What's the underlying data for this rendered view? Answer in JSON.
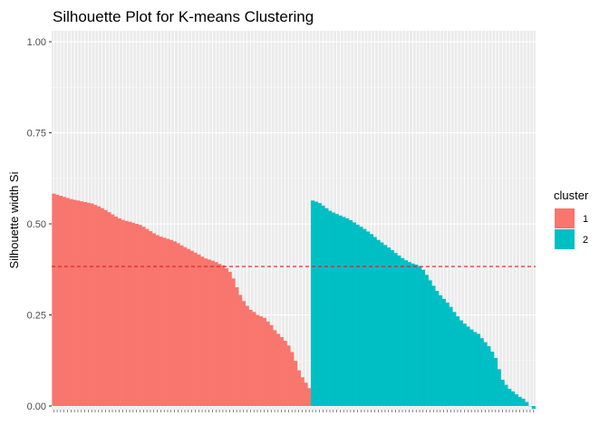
{
  "chart_data": {
    "type": "bar",
    "title": "Silhouette Plot for K-means Clustering",
    "xlabel": "",
    "ylabel": "Silhouette width Si",
    "ylim": [
      -0.01,
      1.03
    ],
    "yticks": [
      0.0,
      0.25,
      0.5,
      0.75,
      1.0
    ],
    "ytick_labels": [
      "0.00",
      "0.25",
      "0.50",
      "0.75",
      "1.00"
    ],
    "average_silhouette": 0.383,
    "average_line_color": "#dd1c1c",
    "grid": true,
    "legend": {
      "title": "cluster",
      "position": "right"
    },
    "series": [
      {
        "name": "1",
        "color": "#f8766d",
        "values": [
          0.583,
          0.58,
          0.577,
          0.574,
          0.571,
          0.568,
          0.566,
          0.564,
          0.562,
          0.56,
          0.558,
          0.556,
          0.552,
          0.548,
          0.543,
          0.538,
          0.532,
          0.526,
          0.52,
          0.515,
          0.511,
          0.508,
          0.506,
          0.503,
          0.5,
          0.497,
          0.492,
          0.486,
          0.48,
          0.474,
          0.469,
          0.465,
          0.462,
          0.459,
          0.456,
          0.452,
          0.447,
          0.441,
          0.436,
          0.431,
          0.426,
          0.421,
          0.416,
          0.41,
          0.405,
          0.402,
          0.399,
          0.395,
          0.39,
          0.386,
          0.378,
          0.368,
          0.35,
          0.326,
          0.305,
          0.288,
          0.275,
          0.264,
          0.258,
          0.25,
          0.246,
          0.242,
          0.232,
          0.222,
          0.208,
          0.198,
          0.189,
          0.179,
          0.166,
          0.148,
          0.124,
          0.098,
          0.079,
          0.064,
          0.049
        ]
      },
      {
        "name": "2",
        "color": "#00bfc4",
        "values": [
          0.564,
          0.561,
          0.557,
          0.55,
          0.543,
          0.536,
          0.531,
          0.527,
          0.523,
          0.519,
          0.515,
          0.51,
          0.504,
          0.498,
          0.492,
          0.486,
          0.479,
          0.472,
          0.464,
          0.456,
          0.449,
          0.442,
          0.435,
          0.428,
          0.42,
          0.413,
          0.406,
          0.4,
          0.395,
          0.391,
          0.388,
          0.384,
          0.374,
          0.36,
          0.345,
          0.33,
          0.316,
          0.304,
          0.294,
          0.284,
          0.272,
          0.258,
          0.246,
          0.235,
          0.226,
          0.218,
          0.21,
          0.203,
          0.198,
          0.186,
          0.175,
          0.164,
          0.149,
          0.132,
          0.101,
          0.072,
          0.058,
          0.047,
          0.04,
          0.032,
          0.025,
          0.02,
          0.011,
          0.0,
          -0.008
        ]
      }
    ]
  }
}
